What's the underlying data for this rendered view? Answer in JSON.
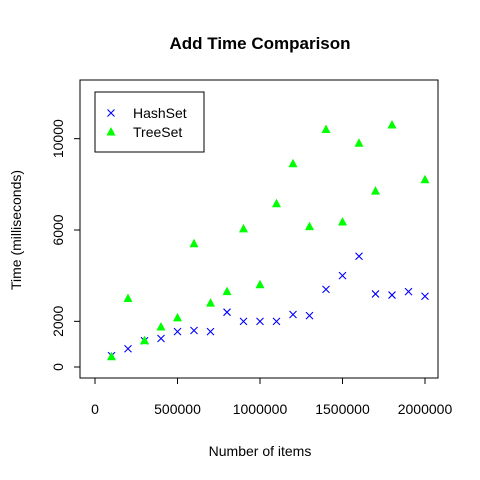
{
  "chart_data": {
    "type": "scatter",
    "title": "Add Time Comparison",
    "xlabel": "Number of items",
    "ylabel": "Time (milliseconds)",
    "xlim": [
      0,
      2000000
    ],
    "ylim": [
      0,
      12000
    ],
    "xticks": [
      0,
      500000,
      1000000,
      1500000,
      2000000
    ],
    "xtick_labels": [
      "0",
      "500000",
      "1000000",
      "1500000",
      "2000000"
    ],
    "yticks": [
      0,
      2000,
      6000,
      10000
    ],
    "ytick_labels": [
      "0",
      "2000",
      "6000",
      "10000"
    ],
    "grid": false,
    "legend_position": "top-left",
    "series": [
      {
        "name": "HashSet",
        "marker": "x",
        "color": "#0000ff",
        "x": [
          100000,
          200000,
          300000,
          400000,
          500000,
          600000,
          700000,
          800000,
          900000,
          1000000,
          1100000,
          1200000,
          1300000,
          1400000,
          1500000,
          1600000,
          1700000,
          1800000,
          1900000,
          2000000
        ],
        "y": [
          500,
          800,
          1150,
          1250,
          1550,
          1600,
          1550,
          2400,
          2000,
          2000,
          2000,
          2300,
          2250,
          3400,
          4000,
          4850,
          3200,
          3150,
          3300,
          3100
        ]
      },
      {
        "name": "TreeSet",
        "marker": "triangle",
        "color": "#00ff00",
        "x": [
          100000,
          200000,
          300000,
          400000,
          500000,
          600000,
          700000,
          800000,
          900000,
          1000000,
          1100000,
          1200000,
          1300000,
          1400000,
          1500000,
          1600000,
          1700000,
          1800000,
          1900000,
          2000000
        ],
        "y": [
          450,
          3000,
          1150,
          1750,
          2150,
          5400,
          2800,
          3300,
          6050,
          3600,
          7150,
          8900,
          6150,
          10400,
          6350,
          9800,
          7700,
          10600,
          null,
          8200
        ]
      }
    ]
  }
}
